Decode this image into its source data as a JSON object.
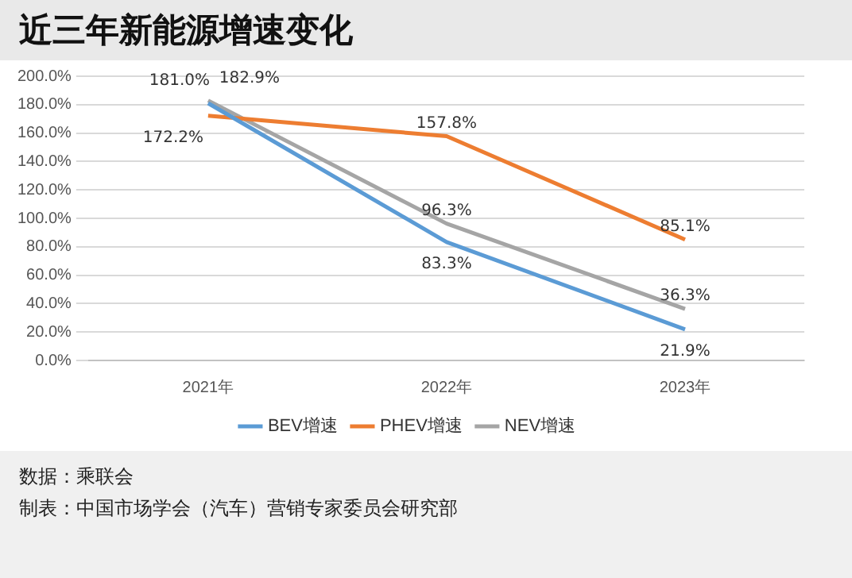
{
  "chart_data": {
    "type": "line",
    "title": "近三年新能源增速变化",
    "categories": [
      "2021年",
      "2022年",
      "2023年"
    ],
    "series": [
      {
        "name": "BEV增速",
        "color": "#5b9bd5",
        "values": [
          181.0,
          83.3,
          21.9
        ],
        "value_labels": [
          "181.0%",
          "83.3%",
          "21.9%"
        ]
      },
      {
        "name": "PHEV增速",
        "color": "#ed7d31",
        "values": [
          172.2,
          157.8,
          85.1
        ],
        "value_labels": [
          "172.2%",
          "157.8%",
          "85.1%"
        ]
      },
      {
        "name": "NEV增速",
        "color": "#a5a5a5",
        "values": [
          182.9,
          96.3,
          36.3
        ],
        "value_labels": [
          "182.9%",
          "96.3%",
          "36.3%"
        ]
      }
    ],
    "ylim": [
      0,
      200
    ],
    "yticks": [
      {
        "value": 0,
        "label": "0.0%"
      },
      {
        "value": 20,
        "label": "20.0%"
      },
      {
        "value": 40,
        "label": "40.0%"
      },
      {
        "value": 60,
        "label": "60.0%"
      },
      {
        "value": 80,
        "label": "80.0%"
      },
      {
        "value": 100,
        "label": "100.0%"
      },
      {
        "value": 120,
        "label": "120.0%"
      },
      {
        "value": 140,
        "label": "140.0%"
      },
      {
        "value": 160,
        "label": "160.0%"
      },
      {
        "value": 180,
        "label": "180.0%"
      },
      {
        "value": 200,
        "label": "200.0%"
      }
    ],
    "grid": "y",
    "legend": "bottom",
    "marker": "none",
    "line_style": "solid",
    "annotations": [
      "数据：乘联会",
      "制表：中国市场学会（汽车）营销专家委员会研究部"
    ]
  }
}
